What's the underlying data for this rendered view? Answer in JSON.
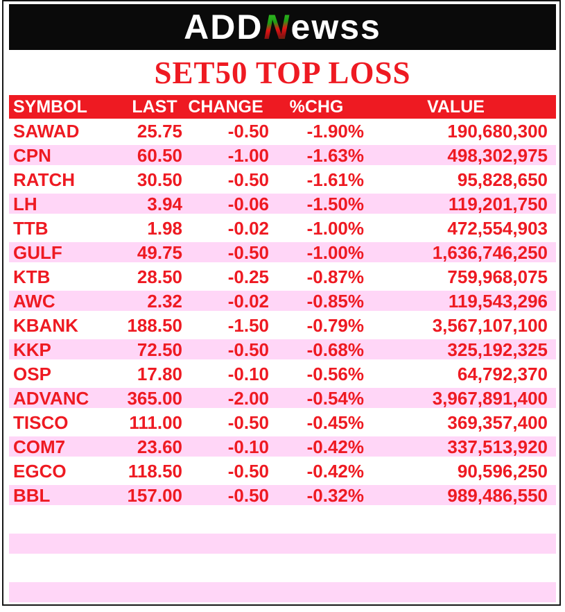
{
  "logo": {
    "prefix": "ADD",
    "accent": "N",
    "suffix": "ewss"
  },
  "title": "SET50 TOP LOSS",
  "colors": {
    "accent_red": "#ee1a22",
    "row_pink": "#ffd6f7",
    "banner_black": "#0a0a0a",
    "header_text_white": "#ffffff",
    "logo_green": "#2eb82e",
    "logo_red": "#d91414"
  },
  "chart_data": {
    "type": "table",
    "title": "SET50 TOP LOSS",
    "columns": [
      "SYMBOL",
      "LAST",
      "CHANGE",
      "%CHG",
      "VALUE"
    ],
    "rows": [
      [
        "SAWAD",
        "25.75",
        "-0.50",
        "-1.90%",
        "190,680,300"
      ],
      [
        "CPN",
        "60.50",
        "-1.00",
        "-1.63%",
        "498,302,975"
      ],
      [
        "RATCH",
        "30.50",
        "-0.50",
        "-1.61%",
        "95,828,650"
      ],
      [
        "LH",
        "3.94",
        "-0.06",
        "-1.50%",
        "119,201,750"
      ],
      [
        "TTB",
        "1.98",
        "-0.02",
        "-1.00%",
        "472,554,903"
      ],
      [
        "GULF",
        "49.75",
        "-0.50",
        "-1.00%",
        "1,636,746,250"
      ],
      [
        "KTB",
        "28.50",
        "-0.25",
        "-0.87%",
        "759,968,075"
      ],
      [
        "AWC",
        "2.32",
        "-0.02",
        "-0.85%",
        "119,543,296"
      ],
      [
        "KBANK",
        "188.50",
        "-1.50",
        "-0.79%",
        "3,567,107,100"
      ],
      [
        "KKP",
        "72.50",
        "-0.50",
        "-0.68%",
        "325,192,325"
      ],
      [
        "OSP",
        "17.80",
        "-0.10",
        "-0.56%",
        "64,792,370"
      ],
      [
        "ADVANC",
        "365.00",
        "-2.00",
        "-0.54%",
        "3,967,891,400"
      ],
      [
        "TISCO",
        "111.00",
        "-0.50",
        "-0.45%",
        "369,357,400"
      ],
      [
        "COM7",
        "23.60",
        "-0.10",
        "-0.42%",
        "337,513,920"
      ],
      [
        "EGCO",
        "118.50",
        "-0.50",
        "-0.42%",
        "90,596,250"
      ],
      [
        "BBL",
        "157.00",
        "-0.50",
        "-0.32%",
        "989,486,550"
      ]
    ],
    "empty_rows": 4,
    "row_striping": "alternating white/pink, first data row white",
    "legend": "none",
    "grid": "off"
  }
}
